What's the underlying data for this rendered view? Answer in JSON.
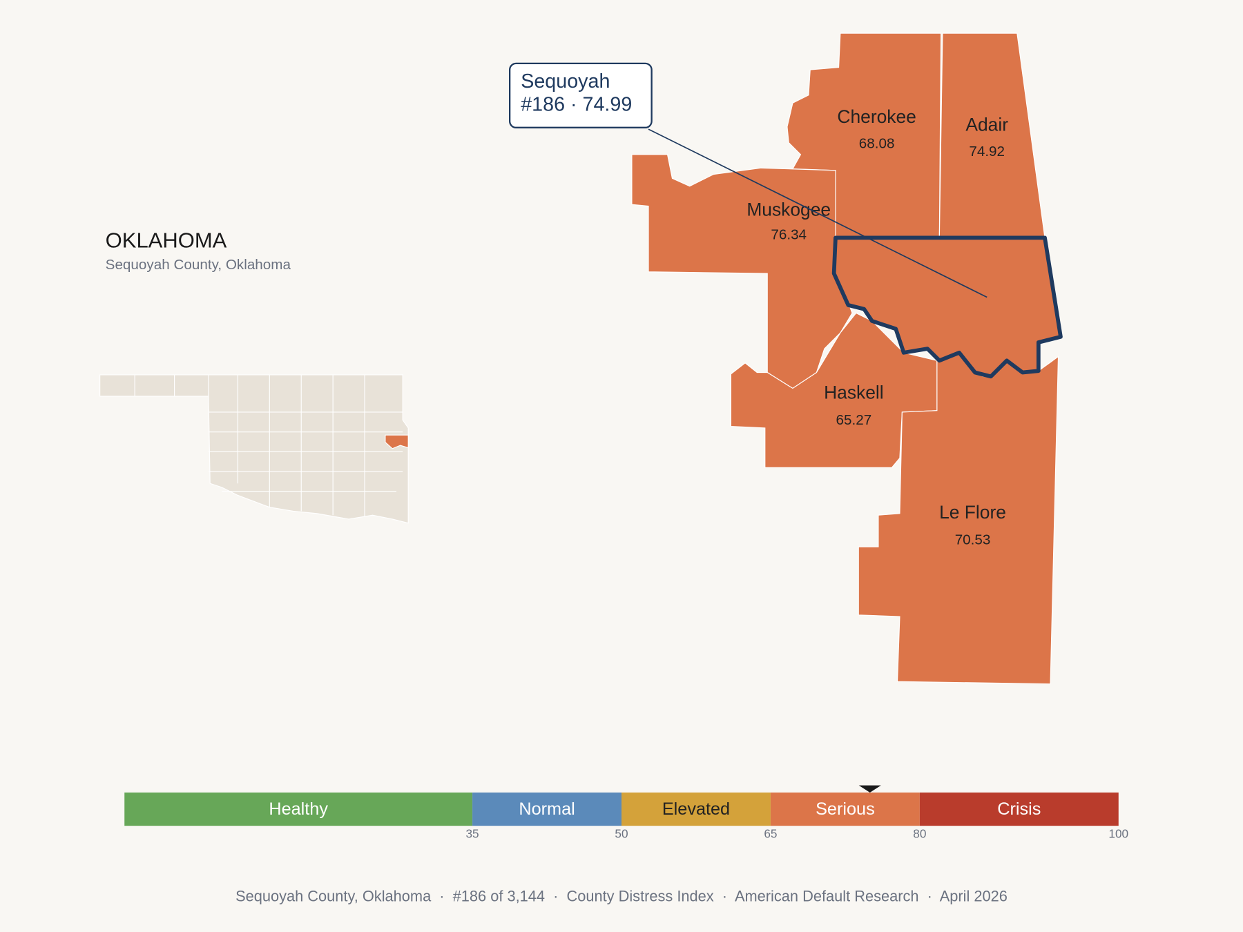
{
  "header": {
    "title": "OKLAHOMA",
    "subtitle": "Sequoyah County, Oklahoma"
  },
  "callout": {
    "name": "Sequoyah",
    "label": "#186 · 74.99",
    "score": 74.99
  },
  "county_color": "#dc7549",
  "counties": [
    {
      "name": "Cherokee",
      "score": 68.08
    },
    {
      "name": "Adair",
      "score": 74.92
    },
    {
      "name": "Muskogee",
      "score": 76.34
    },
    {
      "name": "Haskell",
      "score": 65.27
    },
    {
      "name": "Le Flore",
      "score": 70.53
    }
  ],
  "scale": {
    "range": [
      0,
      100
    ],
    "ticks": [
      35,
      50,
      65,
      80,
      100
    ],
    "bands": [
      {
        "label": "Healthy",
        "color": "#67a758",
        "text_color": "#ffffff"
      },
      {
        "label": "Normal",
        "color": "#5b8aba",
        "text_color": "#ffffff"
      },
      {
        "label": "Elevated",
        "color": "#d4a23a",
        "text_color": "#222222"
      },
      {
        "label": "Serious",
        "color": "#dc7549",
        "text_color": "#ffffff"
      },
      {
        "label": "Crisis",
        "color": "#b93c2c",
        "text_color": "#ffffff"
      }
    ]
  },
  "footer": "Sequoyah County, Oklahoma  ·  #186 of 3,144  ·  County Distress Index  ·  American Default Research  ·  April 2026"
}
